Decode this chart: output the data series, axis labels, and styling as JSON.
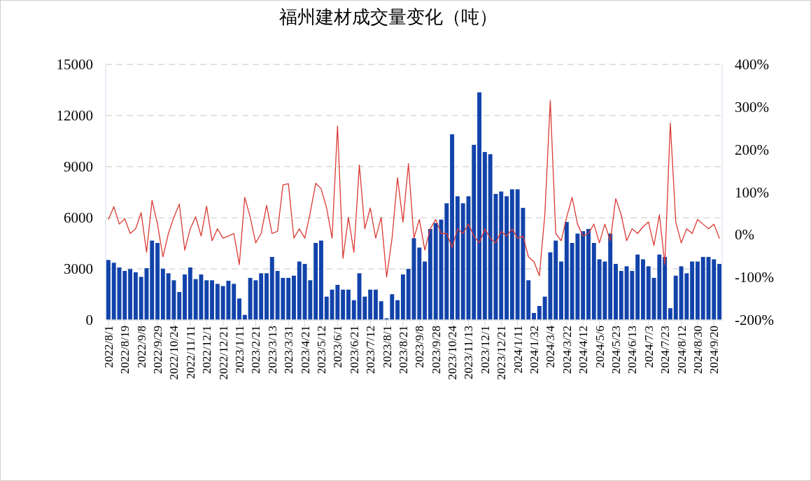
{
  "chart_data": {
    "type": "bar",
    "title": "福州建材成交量变化（吨）",
    "categories": [
      "2022/8/1",
      null,
      null,
      "2022/8/19",
      null,
      null,
      "2022/9/8",
      null,
      null,
      "2022/9/29",
      null,
      null,
      "2022/10/24",
      null,
      null,
      "2022/11/11",
      null,
      null,
      "2022/12/1",
      null,
      null,
      "2022/12/21",
      null,
      null,
      "2023/1/11",
      null,
      null,
      "2023/2/21",
      null,
      null,
      "2023/3/13",
      null,
      null,
      "2023/3/31",
      null,
      null,
      "2023/4/21",
      null,
      null,
      "2023/5/12",
      null,
      null,
      "2023/6/1",
      null,
      null,
      "2023/6/21",
      null,
      null,
      "2023/7/12",
      null,
      null,
      "2023/8/1",
      null,
      null,
      "2023/8/21",
      null,
      null,
      "2023/9/8",
      null,
      null,
      "2023/9/28",
      null,
      null,
      "2023/10/24",
      null,
      null,
      "2023/11/13",
      null,
      null,
      "2023/12/1",
      null,
      null,
      "2023/12/21",
      null,
      null,
      "2024/1/11",
      null,
      null,
      "2024/1/32",
      null,
      null,
      "2024/3/4",
      null,
      null,
      "2024/3/22",
      null,
      null,
      "2024/4/12",
      null,
      null,
      "2024/5/6",
      null,
      null,
      "2024/5/23",
      null,
      null,
      "2024/6/13",
      null,
      null,
      "2024/7/3",
      null,
      null,
      "2024/7/23",
      null,
      null,
      "2024/8/12",
      null,
      null,
      "2024/8/30",
      null,
      null,
      "2024/9/20",
      null
    ],
    "series": [
      {
        "color": "#1243aa",
        "values": [
          3520,
          3360,
          3080,
          2880,
          2990,
          2800,
          2530,
          3040,
          4660,
          4520,
          3010,
          2740,
          2330,
          1640,
          2670,
          3080,
          2400,
          2670,
          2330,
          2330,
          2120,
          1990,
          2300,
          2120,
          1260,
          300,
          2470,
          2330,
          2740,
          2740,
          3700,
          2880,
          2470,
          2470,
          2600,
          3430,
          3290,
          2330,
          4520,
          4660,
          1370,
          1780,
          2060,
          1780,
          1780,
          1160,
          2740,
          1370,
          1780,
          1780,
          1100,
          100,
          1510,
          1160,
          2670,
          3000,
          4800,
          4250,
          3430,
          5340,
          5690,
          5890,
          6850,
          10900,
          7260,
          6850,
          7260,
          10280,
          13360,
          9860,
          9730,
          7400,
          7540,
          7260,
          7670,
          7670,
          6580,
          2330,
          410,
          820,
          1370,
          3970,
          4660,
          3430,
          5750,
          4520,
          5070,
          5210,
          5340,
          4520,
          3560,
          3430,
          5070,
          3290,
          2880,
          3150,
          2880,
          3840,
          3560,
          3150,
          2470,
          3840,
          3700,
          690,
          2600,
          3150,
          2740,
          3430,
          3430,
          3700,
          3700,
          3560,
          3290
        ]
      },
      {
        "type": "line",
        "axis": "y2",
        "color": "#d93a33",
        "values": [
          36,
          66,
          25,
          38,
          3,
          14,
          52,
          -41,
          81,
          25,
          -52,
          3,
          41,
          72,
          -36,
          14,
          42,
          -3,
          67,
          -14,
          14,
          -8,
          -3,
          3,
          -70,
          88,
          41,
          -19,
          3,
          69,
          3,
          8,
          117,
          120,
          -8,
          14,
          -8,
          52,
          121,
          108,
          63,
          -8,
          255,
          -55,
          41,
          -41,
          164,
          14,
          63,
          -8,
          41,
          -99,
          -8,
          134,
          30,
          167,
          -8,
          36,
          -36,
          14,
          36,
          3,
          3,
          -30,
          14,
          3,
          25,
          -3,
          -19,
          14,
          -8,
          -19,
          8,
          -3,
          14,
          -8,
          -3,
          -52,
          -63,
          -96,
          47,
          315,
          3,
          -14,
          41,
          88,
          25,
          -3,
          3,
          25,
          -19,
          25,
          -14,
          85,
          47,
          -14,
          14,
          3,
          19,
          30,
          -25,
          47,
          -69,
          262,
          30,
          -19,
          14,
          3,
          36,
          25,
          14,
          25,
          -8
        ]
      }
    ],
    "ylim": [
      0,
      15000
    ],
    "yticks": [
      0,
      3000,
      6000,
      9000,
      12000,
      15000
    ],
    "y2lim": [
      -200,
      400
    ],
    "y2ticks": [
      {
        "value": -200,
        "label": "-200%"
      },
      {
        "value": -100,
        "label": "-100%"
      },
      {
        "value": 0,
        "label": "0%"
      },
      {
        "value": 100,
        "label": "100%"
      },
      {
        "value": 200,
        "label": "200%"
      },
      {
        "value": 300,
        "label": "300%"
      },
      {
        "value": 400,
        "label": "400%"
      }
    ],
    "grid": "y"
  }
}
